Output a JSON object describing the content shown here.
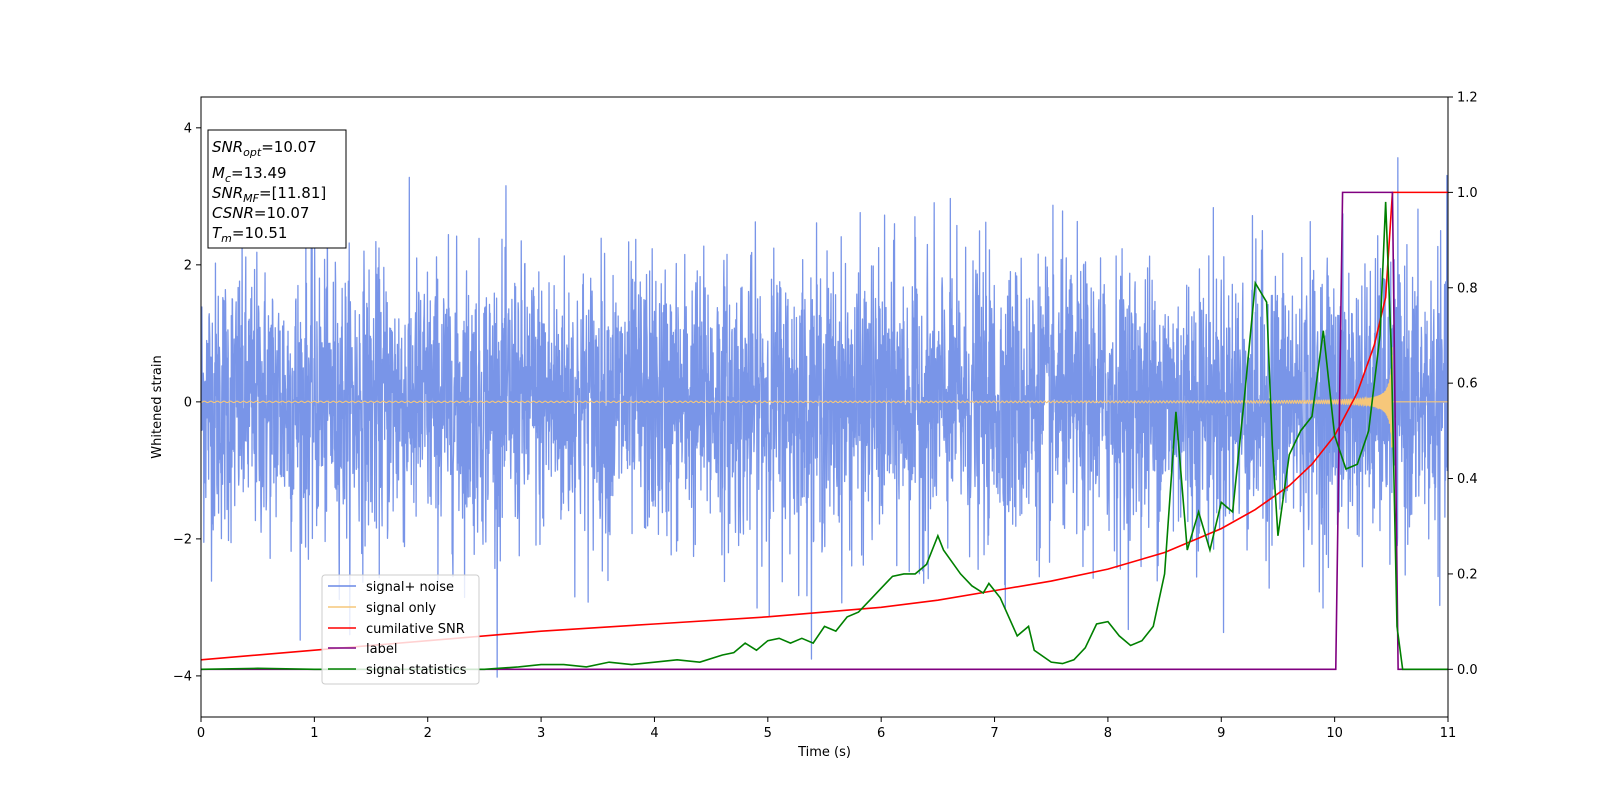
{
  "chart_data": {
    "type": "line",
    "xlabel": "Time (s)",
    "ylabel": "Whitened strain",
    "xlim": [
      0,
      11
    ],
    "ylim": [
      -4.6,
      4.45
    ],
    "y2lim": [
      -0.1,
      1.2
    ],
    "grid": false,
    "legend_position": "lower-left",
    "x_ticks": [
      "0",
      "1",
      "2",
      "3",
      "4",
      "5",
      "6",
      "7",
      "8",
      "9",
      "10",
      "11"
    ],
    "y_ticks": [
      "4",
      "2",
      "0",
      "−2",
      "−4"
    ],
    "y_tick_values": [
      4,
      2,
      0,
      -2,
      -4
    ],
    "y2_ticks": [
      "1.2",
      "1.0",
      "0.8",
      "0.6",
      "0.4",
      "0.2",
      "0.0"
    ],
    "y2_tick_values": [
      1.2,
      1.0,
      0.8,
      0.6,
      0.4,
      0.2,
      0.0
    ],
    "info_box": {
      "snr_opt": {
        "base": "SNR",
        "sub": "opt",
        "value": "=10.07"
      },
      "mc": {
        "base": "M",
        "sub": "c",
        "value": "=13.49"
      },
      "snr_mf": {
        "base": "SNR",
        "sub": "MF",
        "value": "=[11.81]"
      },
      "csnr": {
        "base": "CSNR",
        "sub": "",
        "value": "=10.07"
      },
      "tm": {
        "base": "T",
        "sub": "m",
        "value": "=10.51"
      }
    },
    "series": [
      {
        "name": "signal+ noise",
        "color": "#6a89e6",
        "axis": "left",
        "noise_std": 1.0,
        "t_merge": 10.51
      },
      {
        "name": "signal only",
        "color": "#f6c77a",
        "axis": "left",
        "t_merge": 10.51
      },
      {
        "name": "cumilative SNR",
        "color": "#ff0000",
        "axis": "right",
        "x": [
          0,
          1,
          2,
          3,
          4,
          5,
          5.5,
          6,
          6.5,
          7,
          7.5,
          8,
          8.5,
          9,
          9.3,
          9.6,
          9.8,
          10,
          10.2,
          10.35,
          10.45,
          10.51,
          11
        ],
        "y": [
          0.02,
          0.04,
          0.06,
          0.08,
          0.095,
          0.11,
          0.12,
          0.13,
          0.145,
          0.165,
          0.185,
          0.21,
          0.245,
          0.295,
          0.335,
          0.385,
          0.43,
          0.49,
          0.58,
          0.68,
          0.78,
          1.0,
          1.0
        ]
      },
      {
        "name": "label",
        "color": "#800080",
        "axis": "right",
        "x": [
          0,
          10.01,
          10.07,
          10.51,
          10.56,
          11
        ],
        "y": [
          0,
          0,
          1,
          1,
          0,
          0
        ]
      },
      {
        "name": "signal statistics",
        "color": "#008000",
        "axis": "right",
        "x": [
          0,
          0.5,
          1,
          1.5,
          2,
          2.5,
          2.8,
          3,
          3.2,
          3.4,
          3.6,
          3.8,
          4,
          4.2,
          4.4,
          4.6,
          4.7,
          4.8,
          4.9,
          5,
          5.1,
          5.2,
          5.3,
          5.4,
          5.5,
          5.6,
          5.7,
          5.8,
          5.9,
          6,
          6.1,
          6.2,
          6.3,
          6.4,
          6.5,
          6.55,
          6.7,
          6.8,
          6.9,
          6.95,
          7.05,
          7.2,
          7.3,
          7.35,
          7.5,
          7.6,
          7.7,
          7.8,
          7.9,
          8,
          8.1,
          8.2,
          8.3,
          8.4,
          8.5,
          8.6,
          8.7,
          8.8,
          8.9,
          9,
          9.1,
          9.2,
          9.3,
          9.4,
          9.45,
          9.5,
          9.6,
          9.7,
          9.8,
          9.9,
          10,
          10.1,
          10.2,
          10.3,
          10.4,
          10.45,
          10.5,
          10.55,
          10.6,
          11
        ],
        "y": [
          0,
          0.002,
          0,
          0,
          0,
          0,
          0.005,
          0.01,
          0.01,
          0.005,
          0.015,
          0.01,
          0.015,
          0.02,
          0.015,
          0.03,
          0.035,
          0.055,
          0.04,
          0.06,
          0.065,
          0.055,
          0.065,
          0.055,
          0.09,
          0.08,
          0.11,
          0.12,
          0.145,
          0.17,
          0.195,
          0.2,
          0.2,
          0.22,
          0.28,
          0.25,
          0.2,
          0.175,
          0.16,
          0.18,
          0.15,
          0.07,
          0.09,
          0.04,
          0.015,
          0.012,
          0.02,
          0.045,
          0.095,
          0.1,
          0.07,
          0.05,
          0.06,
          0.09,
          0.2,
          0.54,
          0.25,
          0.33,
          0.25,
          0.35,
          0.33,
          0.56,
          0.81,
          0.77,
          0.47,
          0.28,
          0.45,
          0.5,
          0.53,
          0.71,
          0.49,
          0.42,
          0.43,
          0.5,
          0.7,
          0.98,
          0.67,
          0.09,
          0.0,
          0.0
        ]
      }
    ]
  }
}
